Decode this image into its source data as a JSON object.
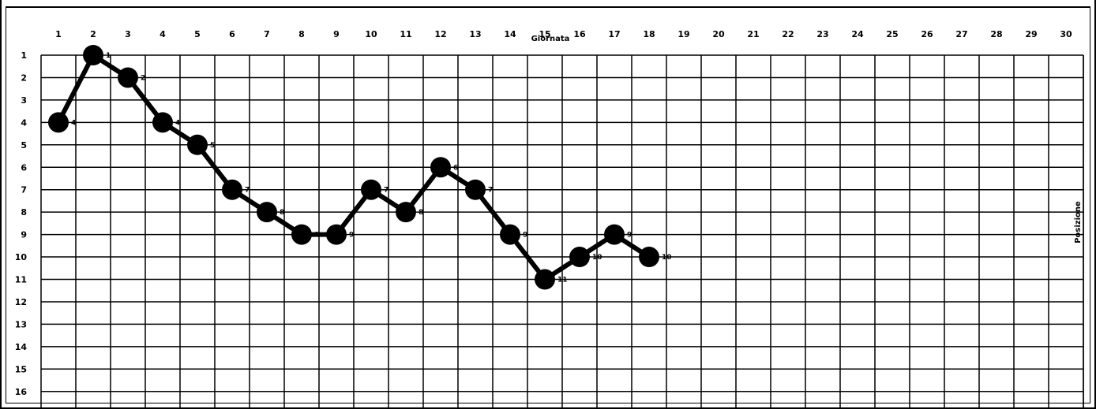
{
  "chart_data": {
    "type": "line",
    "title": "",
    "xlabel": "Giornata",
    "ylabel": "Posizione",
    "x_ticks": [
      "1",
      "2",
      "3",
      "4",
      "5",
      "6",
      "7",
      "8",
      "9",
      "10",
      "11",
      "12",
      "13",
      "14",
      "15",
      "16",
      "17",
      "18",
      "19",
      "20",
      "21",
      "22",
      "23",
      "24",
      "25",
      "26",
      "27",
      "28",
      "29",
      "30"
    ],
    "y_ticks": [
      "1",
      "2",
      "3",
      "4",
      "5",
      "6",
      "7",
      "8",
      "9",
      "10",
      "11",
      "12",
      "13",
      "14",
      "15",
      "16"
    ],
    "xlim": [
      1,
      30
    ],
    "ylim": [
      16,
      1
    ],
    "y_inverted": true,
    "grid": true,
    "series": [
      {
        "x": [
          1,
          2,
          3,
          4,
          5,
          6,
          7,
          8,
          9,
          10,
          11,
          12,
          13,
          14,
          15,
          16,
          17,
          18
        ],
        "values": [
          4,
          1,
          2,
          4,
          5,
          7,
          8,
          9,
          9,
          7,
          8,
          6,
          7,
          9,
          11,
          10,
          9,
          10
        ],
        "labels": [
          "4",
          "1",
          "2",
          "4",
          "5",
          "7",
          "8",
          "9",
          "9",
          "7",
          "8",
          "6",
          "7",
          "9",
          "11",
          "10",
          "9",
          "10"
        ]
      }
    ],
    "colors": {
      "line": "#000000",
      "marker": "#000000",
      "grid": "#000000"
    }
  }
}
